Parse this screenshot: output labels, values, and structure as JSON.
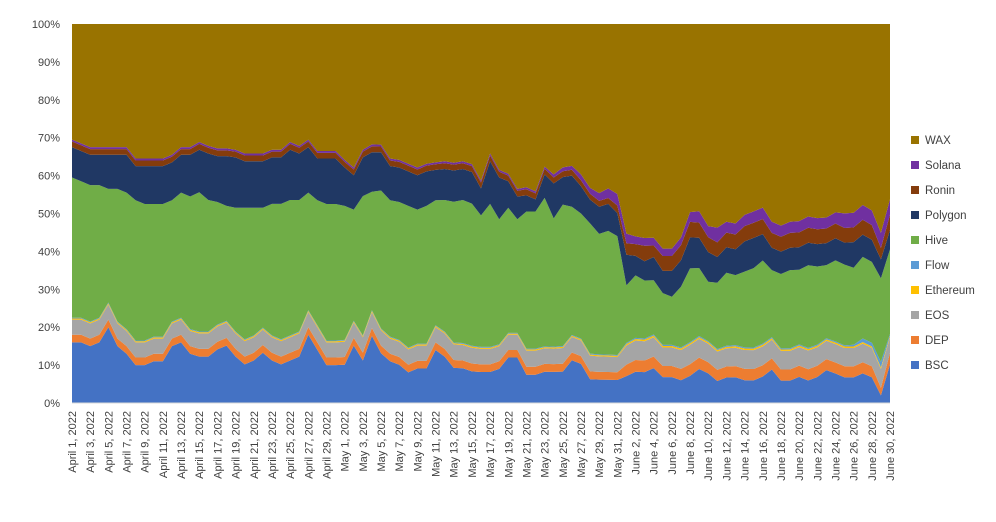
{
  "chart_data": {
    "type": "area",
    "stacked": true,
    "percent": true,
    "ylim": [
      0,
      100
    ],
    "y_ticks": [
      "0%",
      "10%",
      "20%",
      "30%",
      "40%",
      "50%",
      "60%",
      "70%",
      "80%",
      "90%",
      "100%"
    ],
    "x_tick_labels": [
      "April 1, 2022",
      "April 3, 2022",
      "April 5, 2022",
      "April 7, 2022",
      "April 9, 2022",
      "April 11, 2022",
      "April 13, 2022",
      "April 15, 2022",
      "April 17, 2022",
      "April 19, 2022",
      "April 21, 2022",
      "April 23, 2022",
      "April 25, 2022",
      "April 27, 2022",
      "April 29, 2022",
      "May 1, 2022",
      "May 3, 2022",
      "May 5, 2022",
      "May 7, 2022",
      "May 9, 2022",
      "May 11, 2022",
      "May 13, 2022",
      "May 15, 2022",
      "May 17, 2022",
      "May 19, 2022",
      "May 21, 2022",
      "May 23, 2022",
      "May 25, 2022",
      "May 27, 2022",
      "May 29, 2022",
      "May 31, 2022",
      "June 2, 2022",
      "June 4, 2022",
      "June 6, 2022",
      "June 8, 2022",
      "June 10, 2022",
      "June 12, 2022",
      "June 14, 2022",
      "June 16, 2022",
      "June 18, 2022",
      "June 20, 2022",
      "June 22, 2022",
      "June 24, 2022",
      "June 26, 2022",
      "June 28, 2022",
      "June 30, 2022"
    ],
    "legend_position": "right",
    "grid": false,
    "x": [
      "April 1, 2022",
      "April 2, 2022",
      "April 3, 2022",
      "April 4, 2022",
      "April 5, 2022",
      "April 6, 2022",
      "April 7, 2022",
      "April 8, 2022",
      "April 9, 2022",
      "April 10, 2022",
      "April 11, 2022",
      "April 12, 2022",
      "April 13, 2022",
      "April 14, 2022",
      "April 15, 2022",
      "April 16, 2022",
      "April 17, 2022",
      "April 18, 2022",
      "April 19, 2022",
      "April 20, 2022",
      "April 21, 2022",
      "April 22, 2022",
      "April 23, 2022",
      "April 24, 2022",
      "April 25, 2022",
      "April 26, 2022",
      "April 27, 2022",
      "April 28, 2022",
      "April 29, 2022",
      "April 30, 2022",
      "May 1, 2022",
      "May 2, 2022",
      "May 3, 2022",
      "May 4, 2022",
      "May 5, 2022",
      "May 6, 2022",
      "May 7, 2022",
      "May 8, 2022",
      "May 9, 2022",
      "May 10, 2022",
      "May 11, 2022",
      "May 12, 2022",
      "May 13, 2022",
      "May 14, 2022",
      "May 15, 2022",
      "May 16, 2022",
      "May 17, 2022",
      "May 18, 2022",
      "May 19, 2022",
      "May 20, 2022",
      "May 21, 2022",
      "May 22, 2022",
      "May 23, 2022",
      "May 24, 2022",
      "May 25, 2022",
      "May 26, 2022",
      "May 27, 2022",
      "May 28, 2022",
      "May 29, 2022",
      "May 30, 2022",
      "May 31, 2022",
      "June 1, 2022",
      "June 2, 2022",
      "June 3, 2022",
      "June 4, 2022",
      "June 5, 2022",
      "June 6, 2022",
      "June 7, 2022",
      "June 8, 2022",
      "June 9, 2022",
      "June 10, 2022",
      "June 11, 2022",
      "June 12, 2022",
      "June 13, 2022",
      "June 14, 2022",
      "June 15, 2022",
      "June 16, 2022",
      "June 17, 2022",
      "June 18, 2022",
      "June 19, 2022",
      "June 20, 2022",
      "June 21, 2022",
      "June 22, 2022",
      "June 23, 2022",
      "June 24, 2022",
      "June 25, 2022",
      "June 26, 2022",
      "June 27, 2022",
      "June 28, 2022",
      "June 29, 2022",
      "June 30, 2022"
    ],
    "series": [
      {
        "name": "BSC",
        "color": "#4472c4",
        "values": [
          16,
          16,
          15,
          16,
          20,
          15,
          13,
          10,
          10,
          11,
          11,
          15,
          16,
          13,
          12,
          12,
          14,
          15,
          12,
          10,
          11,
          13,
          11,
          10,
          11,
          12,
          18,
          14,
          10,
          10,
          10,
          15,
          11,
          17,
          13,
          11,
          10,
          8,
          9,
          9,
          14,
          12,
          9,
          9,
          8,
          8,
          8,
          9,
          12,
          12,
          7,
          7,
          8,
          8,
          8,
          11,
          10,
          6,
          6,
          6,
          6,
          7,
          8,
          8,
          9,
          7,
          7,
          6,
          7,
          9,
          8,
          6,
          7,
          7,
          6,
          6,
          7,
          9,
          6,
          6,
          7,
          6,
          7,
          9,
          8,
          7,
          7,
          8,
          7,
          2,
          10
        ]
      },
      {
        "name": "DEP",
        "color": "#ed7d31",
        "values": [
          2,
          2,
          2,
          2,
          2,
          2,
          2,
          2,
          2,
          2,
          2,
          2,
          2,
          2,
          2,
          2,
          2,
          2,
          2,
          2,
          2,
          2,
          2,
          2,
          2,
          2,
          2,
          2,
          2,
          2,
          2,
          2,
          2,
          2,
          2,
          2,
          2,
          2,
          2,
          2,
          2,
          2,
          2,
          2,
          2,
          2,
          2,
          2,
          2,
          2,
          2,
          2,
          2,
          2,
          2,
          2,
          2,
          2,
          2,
          2,
          2,
          3,
          3,
          3,
          3,
          3,
          3,
          3,
          3,
          3,
          3,
          3,
          3,
          3,
          3,
          3,
          3,
          3,
          3,
          3,
          3,
          3,
          3,
          3,
          3,
          3,
          3,
          3,
          3,
          2,
          3
        ]
      },
      {
        "name": "EOS",
        "color": "#a5a5a5",
        "values": [
          4,
          4,
          4,
          4,
          4,
          4,
          4,
          4,
          4,
          4,
          4,
          4,
          4,
          4,
          4,
          4,
          4,
          4,
          4,
          4,
          4,
          4,
          4,
          4,
          4,
          4,
          4,
          4,
          4,
          4,
          4,
          4,
          4,
          4,
          4,
          4,
          4,
          4,
          4,
          4,
          4,
          4,
          4,
          4,
          4,
          4,
          4,
          4,
          4,
          4,
          4,
          4,
          4,
          4,
          4,
          4,
          4,
          4,
          4,
          4,
          4,
          5,
          5,
          5,
          5,
          5,
          5,
          5,
          5,
          5,
          5,
          5,
          5,
          5,
          5,
          5,
          5,
          5,
          5,
          5,
          5,
          5,
          5,
          5,
          5,
          5,
          5,
          5,
          5,
          5,
          4
        ]
      },
      {
        "name": "Ethereum",
        "color": "#ffc000",
        "values": [
          0.3,
          0.3,
          0.3,
          0.3,
          0.3,
          0.3,
          0.3,
          0.3,
          0.3,
          0.3,
          0.3,
          0.3,
          0.3,
          0.3,
          0.3,
          0.3,
          0.3,
          0.3,
          0.3,
          0.3,
          0.3,
          0.3,
          0.3,
          0.3,
          0.3,
          0.3,
          0.3,
          0.3,
          0.3,
          0.3,
          0.3,
          0.3,
          0.3,
          0.3,
          0.3,
          0.3,
          0.3,
          0.3,
          0.3,
          0.3,
          0.3,
          0.3,
          0.3,
          0.3,
          0.3,
          0.3,
          0.3,
          0.3,
          0.3,
          0.3,
          0.3,
          0.3,
          0.3,
          0.3,
          0.3,
          0.3,
          0.3,
          0.3,
          0.3,
          0.3,
          0.3,
          0.4,
          0.4,
          0.4,
          0.4,
          0.4,
          0.4,
          0.4,
          0.4,
          0.4,
          0.4,
          0.4,
          0.4,
          0.4,
          0.4,
          0.4,
          0.4,
          0.4,
          0.4,
          0.4,
          0.4,
          0.4,
          0.4,
          0.4,
          0.4,
          0.4,
          0.4,
          0.4,
          0.4,
          0.4,
          0.4
        ]
      },
      {
        "name": "Flow",
        "color": "#5b9bd5",
        "values": [
          0.2,
          0.2,
          0.2,
          0.2,
          0.2,
          0.2,
          0.2,
          0.2,
          0.2,
          0.2,
          0.2,
          0.2,
          0.2,
          0.2,
          0.2,
          0.2,
          0.2,
          0.2,
          0.2,
          0.2,
          0.2,
          0.2,
          0.2,
          0.2,
          0.2,
          0.2,
          0.2,
          0.2,
          0.2,
          0.2,
          0.2,
          0.2,
          0.2,
          0.2,
          0.2,
          0.2,
          0.2,
          0.2,
          0.2,
          0.2,
          0.2,
          0.2,
          0.2,
          0.2,
          0.2,
          0.2,
          0.2,
          0.2,
          0.2,
          0.2,
          0.2,
          0.2,
          0.2,
          0.2,
          0.2,
          0.2,
          0.2,
          0.2,
          0.2,
          0.2,
          0.2,
          0.3,
          0.3,
          0.3,
          0.3,
          0.3,
          0.3,
          0.3,
          0.3,
          0.3,
          0.3,
          0.3,
          0.3,
          0.3,
          0.3,
          0.3,
          0.3,
          0.3,
          0.3,
          0.3,
          0.3,
          0.3,
          0.3,
          0.3,
          0.3,
          0.3,
          0.5,
          1,
          1,
          1.5,
          0.5
        ]
      },
      {
        "name": "Hive",
        "color": "#70ad47",
        "values": [
          37,
          36,
          36,
          35,
          30,
          35,
          36,
          37,
          36,
          35,
          35,
          32,
          33,
          35,
          36,
          34,
          32,
          30,
          32,
          34,
          33,
          31,
          34,
          35,
          35,
          34,
          31,
          33,
          36,
          36,
          35,
          29,
          36,
          30,
          36,
          36,
          36,
          37,
          35,
          36,
          33,
          34,
          36,
          37,
          36,
          34,
          37,
          33,
          33,
          30,
          34,
          34,
          38,
          33,
          36,
          33,
          32,
          33,
          31,
          32,
          31,
          15,
          16,
          15,
          14,
          14,
          13,
          16,
          19,
          18,
          16,
          18,
          20,
          19,
          20,
          21,
          22,
          18,
          20,
          21,
          20,
          22,
          21,
          20,
          22,
          22,
          21,
          22,
          22,
          22,
          22
        ]
      },
      {
        "name": "Polygon",
        "color": "#203864",
        "values": [
          8,
          8,
          8,
          8,
          9,
          9,
          10,
          9,
          10,
          10,
          10,
          10,
          10,
          11,
          11,
          12,
          12,
          13,
          13,
          12,
          12,
          12,
          12,
          12,
          13,
          12,
          12,
          11,
          12,
          12,
          10,
          9,
          10,
          10,
          10,
          9,
          9,
          9,
          9,
          9,
          8,
          8,
          8,
          8,
          8,
          7,
          11,
          11,
          7,
          6,
          4,
          3,
          6,
          9,
          7,
          8,
          7,
          6,
          7,
          7,
          6,
          8,
          5,
          5,
          6,
          6,
          7,
          7,
          8,
          8,
          8,
          7,
          7,
          7,
          8,
          8,
          7,
          6,
          6,
          6,
          6,
          6,
          6,
          6,
          6,
          6,
          7,
          6,
          6,
          5,
          5
        ]
      },
      {
        "name": "Ronin",
        "color": "#843c0c",
        "values": [
          1.5,
          1.5,
          1.5,
          1.5,
          1.5,
          1.5,
          1.5,
          1.5,
          1.5,
          1.5,
          1.5,
          1.5,
          1.5,
          1.5,
          1.5,
          1.5,
          1.5,
          1.5,
          1.5,
          1.5,
          1.5,
          1.5,
          1.5,
          1.5,
          1.5,
          1.5,
          1.5,
          1.5,
          1.5,
          1.5,
          1.5,
          1.5,
          1.5,
          1.5,
          1.5,
          1.5,
          1.5,
          1.5,
          1.5,
          1.5,
          1.5,
          1.5,
          1.5,
          1.5,
          1.5,
          1.5,
          1.5,
          1.5,
          1.5,
          1.5,
          1.5,
          1.5,
          1.5,
          1.5,
          1.5,
          1.5,
          1.5,
          1.5,
          1.5,
          1.5,
          2,
          3,
          3,
          4,
          3,
          4,
          4,
          4,
          4,
          4,
          4,
          4,
          4,
          4,
          4,
          4,
          4,
          4,
          4,
          4,
          4,
          4,
          4,
          4,
          4,
          4,
          4,
          4,
          4,
          3,
          4
        ]
      },
      {
        "name": "Solana",
        "color": "#7030a0",
        "values": [
          0.5,
          0.5,
          0.5,
          0.5,
          0.5,
          0.5,
          0.5,
          0.5,
          0.5,
          0.5,
          0.5,
          0.5,
          0.5,
          0.5,
          0.5,
          0.5,
          0.5,
          0.5,
          0.5,
          0.5,
          0.5,
          0.5,
          0.5,
          0.5,
          0.5,
          0.5,
          0.5,
          0.5,
          0.5,
          0.5,
          0.5,
          0.5,
          0.5,
          0.5,
          0.5,
          0.5,
          0.5,
          0.5,
          0.5,
          0.5,
          0.5,
          0.5,
          0.5,
          0.5,
          0.5,
          0.5,
          0.5,
          0.5,
          0.5,
          0.5,
          0.5,
          0.5,
          0.5,
          0.8,
          1,
          1,
          1.5,
          1.5,
          2,
          2.5,
          3,
          2.5,
          2,
          2,
          2,
          2,
          2,
          2,
          2.5,
          3,
          3,
          4,
          3,
          3,
          3,
          3,
          3,
          3,
          3,
          3,
          3,
          3,
          3,
          3,
          3,
          4,
          4,
          4,
          4,
          4,
          4
        ]
      },
      {
        "name": "WAX",
        "color": "#997300",
        "values": [
          30.5,
          31.5,
          32.5,
          32.5,
          32.5,
          32.5,
          32.5,
          35.5,
          35.5,
          35.5,
          35.5,
          34.5,
          32.5,
          32.5,
          30.5,
          31.5,
          32.5,
          32.5,
          32.5,
          33.5,
          33.5,
          33.5,
          32.5,
          32.5,
          30.5,
          31.5,
          30.5,
          33.5,
          33.5,
          33.5,
          35.5,
          37.5,
          32.5,
          30.5,
          31.5,
          35.5,
          35.5,
          36.5,
          37.5,
          36.5,
          36.5,
          35.5,
          35.5,
          35.5,
          35.5,
          40.5,
          33.5,
          38.5,
          39.5,
          43.5,
          40.5,
          41.5,
          36.5,
          38.7,
          36.5,
          36.5,
          38.5,
          41.5,
          43.5,
          42.5,
          44.3,
          54.7,
          54.4,
          55.4,
          55.2,
          60.7,
          60.7,
          56.4,
          48.5,
          49.5,
          54.5,
          55.4,
          54.2,
          54.1,
          50.4,
          49.6,
          48.6,
          53.1,
          54.2,
          53.1,
          52.8,
          51.3,
          52.2,
          52.9,
          51.1,
          51.6,
          51.5,
          48.8,
          50.7,
          55.1,
          45.5
        ]
      }
    ]
  }
}
